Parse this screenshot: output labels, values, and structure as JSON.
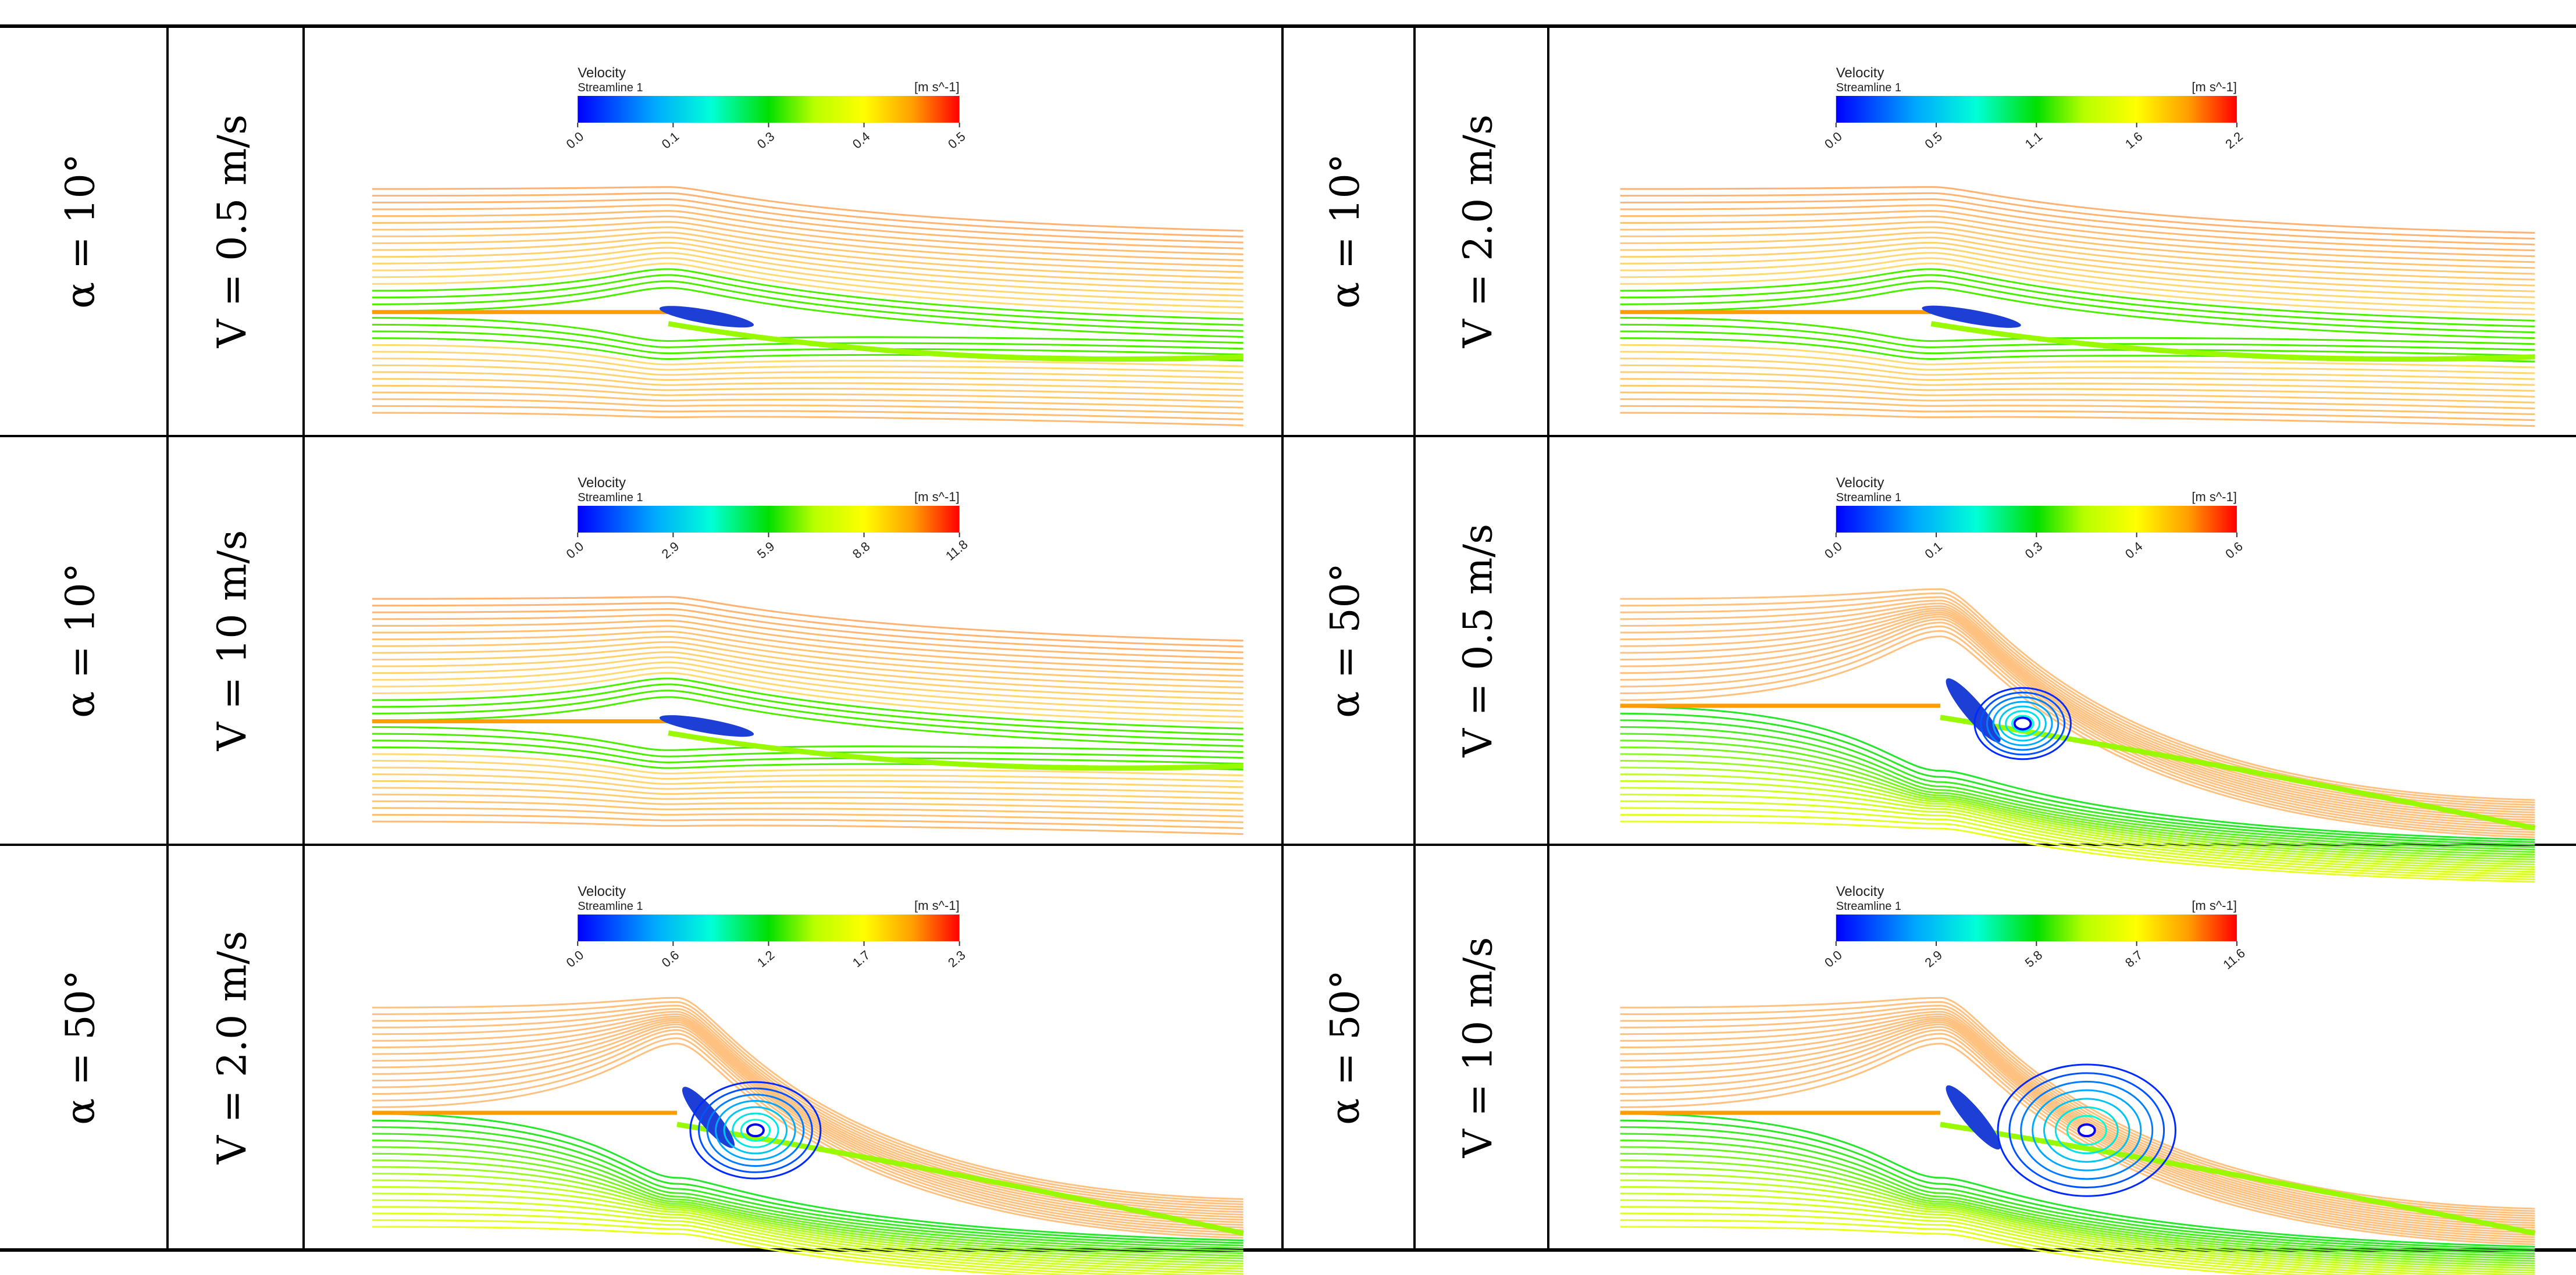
{
  "figure": {
    "rows": [
      [
        {
          "alpha": "α = 10°",
          "velocity": "V = 0.5 m/s",
          "colorbar": {
            "title": "Velocity",
            "subtitle": "Streamline 1",
            "unit": "[m s^-1]",
            "ticks": [
              "0.0",
              "0.1",
              "0.3",
              "0.4",
              "0.5"
            ]
          },
          "flow": {
            "angle_deg": 10,
            "speed_mps": 0.5,
            "pattern": "attached"
          }
        },
        {
          "alpha": "α = 10°",
          "velocity": "V = 2.0 m/s",
          "colorbar": {
            "title": "Velocity",
            "subtitle": "Streamline 1",
            "unit": "[m s^-1]",
            "ticks": [
              "0.0",
              "0.5",
              "1.1",
              "1.6",
              "2.2"
            ]
          },
          "flow": {
            "angle_deg": 10,
            "speed_mps": 2.0,
            "pattern": "attached"
          }
        }
      ],
      [
        {
          "alpha": "α = 10°",
          "velocity": "V = 10 m/s",
          "colorbar": {
            "title": "Velocity",
            "subtitle": "Streamline 1",
            "unit": "[m s^-1]",
            "ticks": [
              "0.0",
              "2.9",
              "5.9",
              "8.8",
              "11.8"
            ]
          },
          "flow": {
            "angle_deg": 10,
            "speed_mps": 10,
            "pattern": "attached"
          }
        },
        {
          "alpha": "α = 50°",
          "velocity": "V = 0.5 m/s",
          "colorbar": {
            "title": "Velocity",
            "subtitle": "Streamline 1",
            "unit": "[m s^-1]",
            "ticks": [
              "0.0",
              "0.1",
              "0.3",
              "0.4",
              "0.6"
            ]
          },
          "flow": {
            "angle_deg": 50,
            "speed_mps": 0.5,
            "pattern": "separated"
          }
        }
      ],
      [
        {
          "alpha": "α = 50°",
          "velocity": "V = 2.0 m/s",
          "colorbar": {
            "title": "Velocity",
            "subtitle": "Streamline 1",
            "unit": "[m s^-1]",
            "ticks": [
              "0.0",
              "0.6",
              "1.2",
              "1.7",
              "2.3"
            ]
          },
          "flow": {
            "angle_deg": 50,
            "speed_mps": 2.0,
            "pattern": "vortex"
          }
        },
        {
          "alpha": "α = 50°",
          "velocity": "V = 10 m/s",
          "colorbar": {
            "title": "Velocity",
            "subtitle": "Streamline 1",
            "unit": "[m s^-1]",
            "ticks": [
              "0.0",
              "2.9",
              "5.8",
              "8.7",
              "11.6"
            ]
          },
          "flow": {
            "angle_deg": 50,
            "speed_mps": 10,
            "pattern": "vortex-large"
          }
        }
      ]
    ]
  },
  "colors": {
    "colormap": [
      "#0000ff",
      "#00a2ff",
      "#00ffd0",
      "#00ff00",
      "#c8ff00",
      "#ffff00",
      "#ff9c00",
      "#ff0000"
    ],
    "grid_line": "#000000",
    "streamline_free": "#f7a072",
    "streamline_red": "#ff6a6a",
    "streamline_wake": "#3cc7ff",
    "airfoil": "#1d3fd6"
  }
}
